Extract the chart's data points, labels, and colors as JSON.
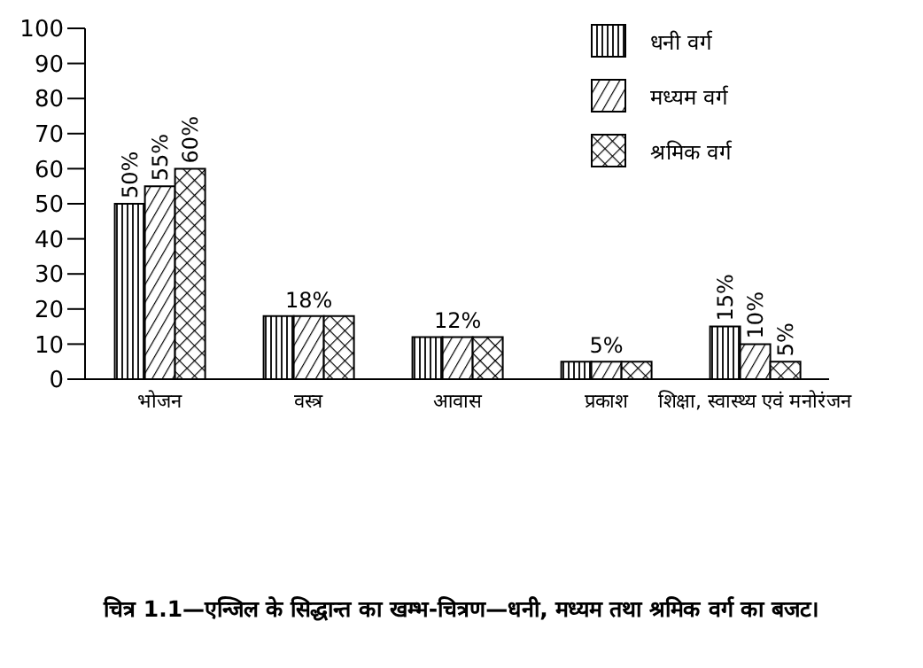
{
  "chart_data": {
    "type": "bar",
    "categories": [
      "भोजन",
      "वस्त्र",
      "आवास",
      "प्रकाश",
      "शिक्षा, स्वास्थ्य एवं मनोरंजन"
    ],
    "series": [
      {
        "name": "धनी वर्ग",
        "color": "#000000",
        "values": [
          50,
          18,
          12,
          5,
          15
        ],
        "value_labels": [
          "50%",
          null,
          null,
          null,
          "15%"
        ]
      },
      {
        "name": "मध्यम वर्ग",
        "color": "#000000",
        "values": [
          55,
          18,
          12,
          5,
          10
        ],
        "value_labels": [
          "55%",
          "18%",
          "12%",
          "5%",
          "10%"
        ]
      },
      {
        "name": "श्रमिक वर्ग",
        "color": "#000000",
        "values": [
          60,
          18,
          12,
          5,
          5
        ],
        "value_labels": [
          "60%",
          null,
          null,
          null,
          "5%"
        ]
      }
    ],
    "ylim": [
      0,
      100
    ],
    "yticks": [
      0,
      10,
      20,
      30,
      40,
      50,
      60,
      70,
      80,
      90,
      100
    ],
    "grid": false,
    "legend": "top right",
    "annotations": [
      "चित्र 1.1—एन्जिल के सिद्धान्त का खम्भ-चित्रण—धनी, मध्यम तथा श्रमिक वर्ग का बजट।"
    ]
  }
}
